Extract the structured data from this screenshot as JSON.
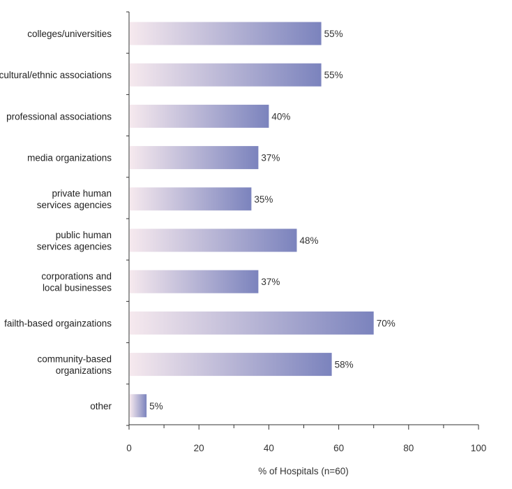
{
  "chart_data": {
    "type": "bar",
    "orientation": "horizontal",
    "categories": [
      [
        "colleges/universities"
      ],
      [
        "cultural/ethnic associations"
      ],
      [
        "professional associations"
      ],
      [
        "media organizations"
      ],
      [
        "private human",
        "services agencies"
      ],
      [
        "public human",
        "services agencies"
      ],
      [
        "corporations and",
        "local businesses"
      ],
      [
        "failth-based orgainzations"
      ],
      [
        "community-based",
        "organizations"
      ],
      [
        "other"
      ]
    ],
    "values": [
      55,
      55,
      40,
      37,
      35,
      48,
      37,
      70,
      58,
      5
    ],
    "value_labels": [
      "55%",
      "55%",
      "40%",
      "37%",
      "35%",
      "48%",
      "37%",
      "70%",
      "58%",
      "5%"
    ],
    "xlabel": "% of Hospitals (n=60)",
    "xlim": [
      0,
      100
    ],
    "xticks": [
      0,
      20,
      40,
      60,
      80,
      100
    ],
    "grid": false,
    "colors": {
      "bar_start": "#f6e9ee",
      "bar_end": "#7b83bd",
      "axis": "#333333"
    }
  }
}
